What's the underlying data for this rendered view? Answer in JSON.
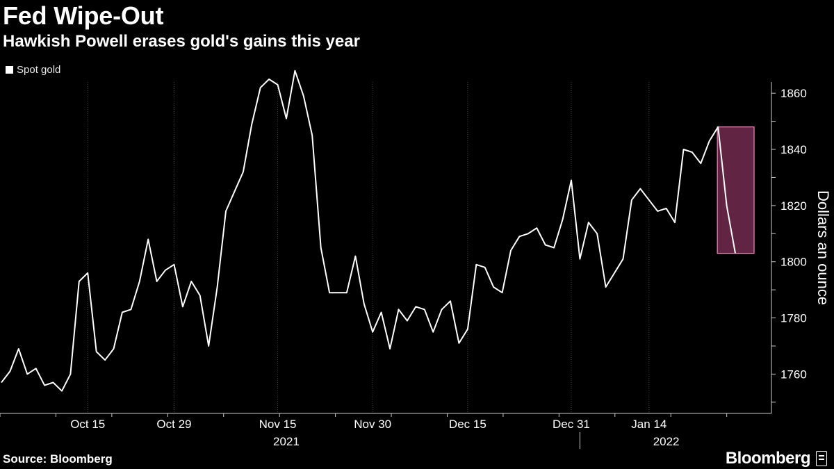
{
  "header": {
    "title": "Fed Wipe-Out",
    "subtitle": "Hawkish Powell erases gold's gains this year"
  },
  "legend": {
    "label": "Spot gold",
    "color": "#ffffff"
  },
  "footer": {
    "source": "Source: Bloomberg",
    "brand": "Bloomberg"
  },
  "colors": {
    "background": "#000000",
    "line": "#ffffff",
    "highlight": "#b0447a",
    "highlight_border": "#f08cc0",
    "grid": "#444444"
  },
  "chart_data": {
    "type": "line",
    "ylabel": "Dollars an ounce",
    "ylim": [
      1746,
      1864
    ],
    "y_ticks": [
      1760,
      1780,
      1800,
      1820,
      1840,
      1860
    ],
    "y_grid": false,
    "x_ticks": [
      {
        "label": "Oct 15",
        "index": 10
      },
      {
        "label": "Oct 29",
        "index": 20
      },
      {
        "label": "Nov 15",
        "index": 32
      },
      {
        "label": "Nov 30",
        "index": 43
      },
      {
        "label": "Dec 15",
        "index": 54
      },
      {
        "label": "Dec 31",
        "index": 66
      },
      {
        "label": "Jan 14",
        "index": 75
      }
    ],
    "x_tick_count": 90,
    "year_labels": [
      {
        "label": "2021",
        "index": 33
      },
      {
        "label": "2022",
        "index": 77
      }
    ],
    "year_divider_index": 67,
    "series": [
      {
        "name": "Spot gold",
        "values": [
          1757,
          1761,
          1769,
          1760,
          1762,
          1756,
          1757,
          1754,
          1760,
          1793,
          1796,
          1768,
          1765,
          1769,
          1782,
          1783,
          1793,
          1808,
          1793,
          1797,
          1799,
          1784,
          1793,
          1788,
          1770,
          1791,
          1818,
          1825,
          1832,
          1849,
          1862,
          1865,
          1863,
          1851,
          1868,
          1859,
          1845,
          1805,
          1789,
          1789,
          1789,
          1802,
          1785,
          1775,
          1782,
          1769,
          1783,
          1779,
          1784,
          1783,
          1775,
          1783,
          1786,
          1771,
          1776,
          1799,
          1798,
          1791,
          1789,
          1804,
          1809,
          1810,
          1812,
          1806,
          1805,
          1815,
          1829,
          1801,
          1814,
          1810,
          1791,
          1796,
          1801,
          1822,
          1826,
          1822,
          1818,
          1819,
          1814,
          1840,
          1839,
          1835,
          1843,
          1848,
          1820,
          1803
        ]
      }
    ],
    "highlight_range": {
      "start_index": 83,
      "end_index": 85
    }
  }
}
